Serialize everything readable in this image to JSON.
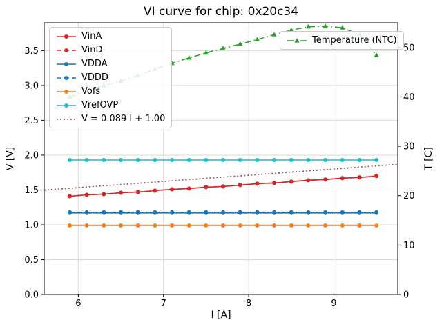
{
  "chart_data": {
    "type": "line",
    "title": "VI curve for chip: 0x20c34",
    "xlabel": "I [A]",
    "ylabel_left": "V [V]",
    "ylabel_right": "T [C]",
    "xlim": [
      5.6,
      9.75
    ],
    "ylim_left": [
      0,
      3.9
    ],
    "ylim_right": [
      0,
      55
    ],
    "grid": true,
    "xticks": {
      "values": [
        6,
        7,
        8,
        9
      ],
      "labels": [
        "6",
        "7",
        "8",
        "9"
      ]
    },
    "yticks_left": {
      "values": [
        0,
        0.5,
        1.0,
        1.5,
        2.0,
        2.5,
        3.0,
        3.5
      ],
      "labels": [
        "0.0",
        "0.5",
        "1.0",
        "1.5",
        "2.0",
        "2.5",
        "3.0",
        "3.5"
      ]
    },
    "yticks_right": {
      "values": [
        0,
        10,
        20,
        30,
        40,
        50
      ],
      "labels": [
        "0",
        "10",
        "20",
        "30",
        "40",
        "50"
      ]
    },
    "x": [
      5.9,
      6.1,
      6.3,
      6.5,
      6.7,
      6.9,
      7.1,
      7.3,
      7.5,
      7.7,
      7.9,
      8.1,
      8.3,
      8.5,
      8.7,
      8.9,
      9.1,
      9.3,
      9.5
    ],
    "series": [
      {
        "name": "VinA",
        "axis": "left",
        "legend": "left",
        "color": "#d62728",
        "style": "solid",
        "marker": "circle",
        "values": [
          1.41,
          1.43,
          1.44,
          1.46,
          1.47,
          1.49,
          1.51,
          1.52,
          1.54,
          1.55,
          1.57,
          1.59,
          1.6,
          1.62,
          1.64,
          1.65,
          1.67,
          1.68,
          1.7
        ]
      },
      {
        "name": "VinD",
        "axis": "left",
        "legend": "left",
        "color": "#d62728",
        "style": "dashed",
        "marker": "circle",
        "values": [
          1.41,
          1.43,
          1.44,
          1.46,
          1.47,
          1.49,
          1.51,
          1.52,
          1.54,
          1.55,
          1.57,
          1.59,
          1.6,
          1.62,
          1.64,
          1.65,
          1.67,
          1.68,
          1.7
        ]
      },
      {
        "name": "VDDA",
        "axis": "left",
        "legend": "left",
        "color": "#1f77b4",
        "style": "solid",
        "marker": "circle",
        "values": [
          1.17,
          1.17,
          1.17,
          1.17,
          1.17,
          1.17,
          1.17,
          1.17,
          1.17,
          1.17,
          1.17,
          1.17,
          1.17,
          1.17,
          1.17,
          1.17,
          1.17,
          1.17,
          1.17
        ]
      },
      {
        "name": "VDDD",
        "axis": "left",
        "legend": "left",
        "color": "#1f77b4",
        "style": "dashed",
        "marker": "circle",
        "values": [
          1.18,
          1.18,
          1.18,
          1.18,
          1.18,
          1.18,
          1.18,
          1.18,
          1.18,
          1.18,
          1.18,
          1.18,
          1.18,
          1.18,
          1.18,
          1.18,
          1.18,
          1.18,
          1.18
        ]
      },
      {
        "name": "Vofs",
        "axis": "left",
        "legend": "left",
        "color": "#ff7f0e",
        "style": "solid",
        "marker": "circle",
        "values": [
          0.99,
          0.99,
          0.99,
          0.99,
          0.99,
          0.99,
          0.99,
          0.99,
          0.99,
          0.99,
          0.99,
          0.99,
          0.99,
          0.99,
          0.99,
          0.99,
          0.99,
          0.99,
          0.99
        ]
      },
      {
        "name": "VrefOVP",
        "axis": "left",
        "legend": "left",
        "color": "#17becf",
        "style": "solid",
        "marker": "circle",
        "values": [
          1.93,
          1.93,
          1.93,
          1.93,
          1.93,
          1.93,
          1.93,
          1.93,
          1.93,
          1.93,
          1.93,
          1.93,
          1.93,
          1.93,
          1.93,
          1.93,
          1.93,
          1.93,
          1.93
        ]
      },
      {
        "name": "V = 0.089 I + 1.00",
        "axis": "left",
        "legend": "left",
        "color": "#8c564b",
        "style": "dotted",
        "marker": "none",
        "x_override": [
          5.6,
          9.75
        ],
        "values": [
          1.498,
          1.868
        ]
      },
      {
        "name": "Temperature (NTC)",
        "axis": "right",
        "legend": "right",
        "color": "#2ca02c",
        "style": "dashdot",
        "marker": "triangle",
        "values": [
          40.0,
          41.2,
          42.3,
          43.2,
          44.3,
          45.6,
          46.8,
          47.9,
          48.9,
          49.8,
          50.7,
          51.6,
          52.6,
          53.5,
          54.2,
          54.3,
          54.0,
          52.6,
          48.4
        ]
      }
    ]
  }
}
